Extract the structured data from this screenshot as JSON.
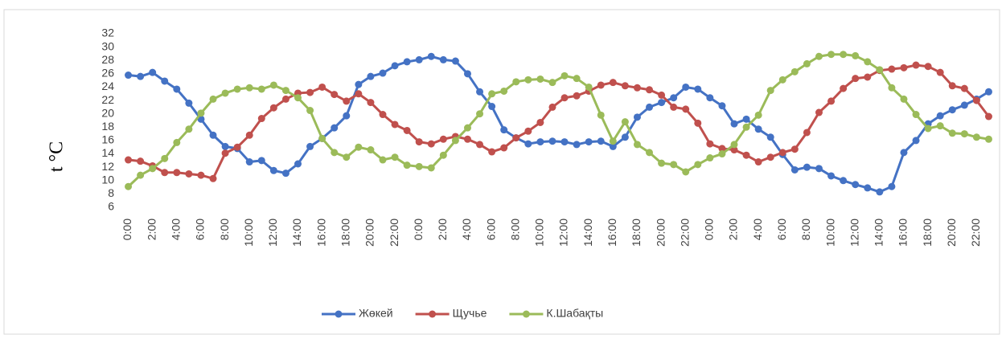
{
  "chart_data": {
    "type": "line",
    "y_label": "t °C",
    "categories": [
      "0:00",
      null,
      "2:00",
      null,
      "4:00",
      null,
      "6:00",
      null,
      "8:00",
      null,
      "10:00",
      null,
      "12:00",
      null,
      "14:00",
      null,
      "16:00",
      null,
      "18:00",
      null,
      "20:00",
      null,
      "22:00",
      null,
      "0:00",
      null,
      "2:00",
      null,
      "4:00",
      null,
      "6:00",
      null,
      "8:00",
      null,
      "10:00",
      null,
      "12:00",
      null,
      "14:00",
      null,
      "16:00",
      null,
      "18:00",
      null,
      "20:00",
      null,
      "22:00",
      null,
      "0:00",
      null,
      "2:00",
      null,
      "4:00",
      null,
      "6:00",
      null,
      "8:00",
      null,
      "10:00",
      null,
      "12:00",
      null,
      "14:00",
      null,
      "16:00",
      null,
      "18:00",
      null,
      "20:00",
      null,
      "22:00",
      null
    ],
    "series": [
      {
        "name": "Жөкей",
        "color": "#4472c4",
        "values": [
          25.8,
          25.6,
          26.2,
          24.9,
          23.7,
          21.6,
          19.2,
          16.8,
          15.1,
          14.8,
          12.8,
          13.0,
          11.5,
          11.1,
          12.5,
          15.1,
          16.3,
          17.9,
          19.7,
          24.4,
          25.6,
          26.1,
          27.2,
          27.8,
          28.1,
          28.6,
          28.1,
          27.9,
          26.0,
          23.3,
          21.1,
          17.6,
          16.4,
          15.5,
          15.8,
          15.9,
          15.8,
          15.4,
          15.8,
          15.9,
          15.1,
          16.5,
          19.5,
          21.0,
          21.7,
          22.4,
          24.0,
          23.7,
          22.4,
          21.2,
          18.5,
          19.2,
          17.7,
          16.5,
          13.9,
          11.6,
          12.0,
          11.8,
          10.7,
          10.0,
          9.4,
          8.9,
          8.3,
          9.1,
          14.2,
          16.0,
          18.5,
          19.7,
          20.6,
          21.3,
          22.2,
          23.3
        ]
      },
      {
        "name": "Щучье",
        "color": "#c0504d",
        "values": [
          13.1,
          12.9,
          12.2,
          11.2,
          11.2,
          11.0,
          10.8,
          10.3,
          14.1,
          15.0,
          16.8,
          19.3,
          20.9,
          22.2,
          23.1,
          23.2,
          24.0,
          22.9,
          21.9,
          23.0,
          21.7,
          19.9,
          18.4,
          17.5,
          15.8,
          15.5,
          16.2,
          16.6,
          16.2,
          15.4,
          14.3,
          14.9,
          16.4,
          17.4,
          18.7,
          21.0,
          22.4,
          22.7,
          23.4,
          24.3,
          24.7,
          24.2,
          23.9,
          23.6,
          22.8,
          21.0,
          20.7,
          18.6,
          15.5,
          14.8,
          14.6,
          13.8,
          12.8,
          13.5,
          14.2,
          14.7,
          17.2,
          20.2,
          21.9,
          23.8,
          25.3,
          25.5,
          26.5,
          26.7,
          26.9,
          27.3,
          27.1,
          26.2,
          24.2,
          23.8,
          22.0,
          19.6
        ]
      },
      {
        "name": "К.Шабақты",
        "color": "#9bbb59",
        "values": [
          9.1,
          10.8,
          11.8,
          13.3,
          15.7,
          17.7,
          20.1,
          22.2,
          23.1,
          23.7,
          23.9,
          23.7,
          24.3,
          23.5,
          22.4,
          20.5,
          16.3,
          14.2,
          13.5,
          15.0,
          14.6,
          13.1,
          13.5,
          12.3,
          12.1,
          11.9,
          13.8,
          16.0,
          17.9,
          20.0,
          23.0,
          23.4,
          24.8,
          25.1,
          25.2,
          24.7,
          25.7,
          25.3,
          24.0,
          19.8,
          15.9,
          18.8,
          15.4,
          14.2,
          12.6,
          12.4,
          11.3,
          12.4,
          13.4,
          14.0,
          15.4,
          18.0,
          19.8,
          23.5,
          25.1,
          26.3,
          27.5,
          28.6,
          28.9,
          28.9,
          28.7,
          27.8,
          26.6,
          23.9,
          22.2,
          19.9,
          17.8,
          18.2,
          17.1,
          17.0,
          16.5,
          16.2
        ]
      }
    ],
    "ylim": [
      6,
      32
    ],
    "yticks": [
      6,
      8,
      10,
      12,
      14,
      16,
      18,
      20,
      22,
      24,
      26,
      28,
      30,
      32
    ],
    "grid": false
  }
}
